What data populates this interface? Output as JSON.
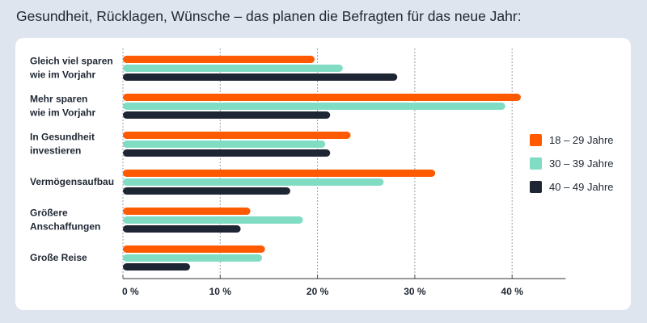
{
  "chart_data": {
    "type": "bar",
    "orientation": "horizontal",
    "title": "Gesundheit, Rücklagen, Wünsche – das planen die Befragten für das neue Jahr:",
    "categories": [
      [
        "Gleich viel sparen",
        "wie im Vorjahr"
      ],
      [
        "Mehr sparen",
        "wie im Vorjahr"
      ],
      [
        "In Gesundheit",
        "investieren"
      ],
      [
        "Vermögensaufbau"
      ],
      [
        "Größere",
        "Anschaffungen"
      ],
      [
        "Große Reise"
      ]
    ],
    "series": [
      {
        "name": "18 – 29 Jahre",
        "color": "#ff5a00",
        "values": [
          19.7,
          40.9,
          23.4,
          32.1,
          13.1,
          14.6
        ]
      },
      {
        "name": "30 – 39 Jahre",
        "color": "#80dcc3",
        "values": [
          22.6,
          39.3,
          20.8,
          26.8,
          18.5,
          14.3
        ]
      },
      {
        "name": "40 – 49 Jahre",
        "color": "#1e2633",
        "values": [
          28.2,
          21.3,
          21.3,
          17.2,
          12.1,
          6.9
        ]
      }
    ],
    "xticks": [
      0,
      10,
      20,
      30,
      40
    ],
    "xtick_labels": [
      "0 %",
      "10 %",
      "20 %",
      "30 %",
      "40 %"
    ],
    "xlim": [
      0,
      45.5
    ],
    "grid": "vertical dotted",
    "legend": "right",
    "xlabel": "",
    "ylabel": ""
  }
}
